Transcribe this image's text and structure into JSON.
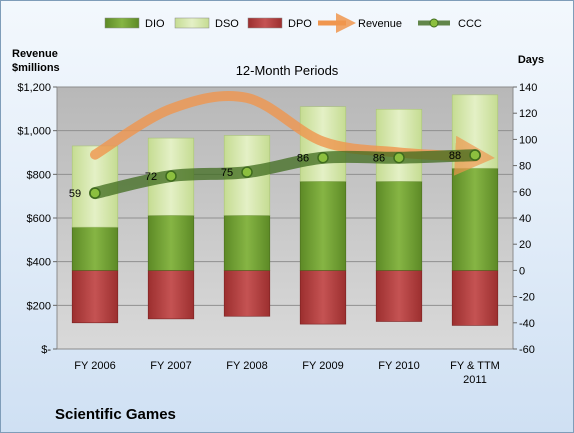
{
  "chart_data": {
    "type": "bar",
    "title": "12-Month Periods",
    "company": "Scientific Games",
    "left_axis_title_line1": "Revenue",
    "left_axis_title_line2": "$millions",
    "right_axis_title": "Days",
    "categories": [
      [
        "FY 2006"
      ],
      [
        "FY 2007"
      ],
      [
        "FY 2008"
      ],
      [
        "FY 2009"
      ],
      [
        "FY 2010"
      ],
      [
        "FY & TTM",
        "2011"
      ]
    ],
    "left_axis": {
      "ylim": [
        0,
        1200
      ],
      "ticks": [
        0,
        200,
        400,
        600,
        800,
        1000,
        1200
      ],
      "tick_labels": [
        "$-",
        "$200",
        "$400",
        "$600",
        "$800",
        "$1,000",
        "$1,200"
      ]
    },
    "right_axis": {
      "ylim": [
        -60,
        140
      ],
      "ticks": [
        -60,
        -40,
        -20,
        0,
        20,
        40,
        60,
        80,
        100,
        120,
        140
      ],
      "tick_labels": [
        "-60",
        "-40",
        "-20",
        "0",
        "20",
        "40",
        "60",
        "80",
        "100",
        "120",
        "140"
      ]
    },
    "series": [
      {
        "name": "DIO",
        "type": "stacked-bar",
        "axis": "right",
        "color": "#6f9a32",
        "values": [
          33,
          42,
          42,
          68,
          68,
          78
        ]
      },
      {
        "name": "DSO",
        "type": "stacked-bar",
        "axis": "right",
        "color": "#d4e6a8",
        "values": [
          62,
          59,
          61,
          57,
          55,
          56
        ]
      },
      {
        "name": "DPO",
        "type": "stacked-bar",
        "axis": "right",
        "color": "#b23b3b",
        "values": [
          -40,
          -37,
          -35,
          -41,
          -39,
          -42
        ]
      },
      {
        "name": "Revenue",
        "type": "line",
        "axis": "left",
        "color": "#f0964e",
        "values": [
          890,
          1100,
          1150,
          950,
          900,
          880
        ]
      },
      {
        "name": "CCC",
        "type": "line",
        "axis": "right",
        "color": "#3f6b1e",
        "values": [
          59,
          72,
          75,
          86,
          86,
          88
        ],
        "labels": [
          "59",
          "72",
          "75",
          "86",
          "86",
          "88"
        ]
      }
    ]
  }
}
